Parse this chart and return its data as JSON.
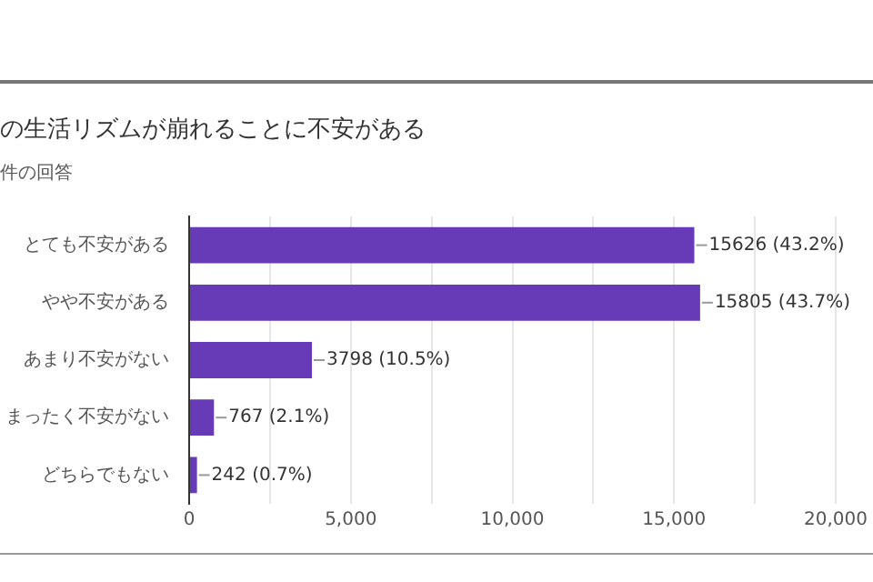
{
  "chart_data": {
    "type": "bar",
    "orientation": "horizontal",
    "title": "の生活リズムが崩れることに不安がある",
    "subtitle": "件の回答",
    "categories": [
      "とても不安がある",
      "やや不安がある",
      "あまり不安がない",
      "まったく不安がない",
      "どちらでもない"
    ],
    "values": [
      15626,
      15805,
      3798,
      767,
      242
    ],
    "value_labels": [
      "15626 (43.2%)",
      "15805 (43.7%)",
      "3798 (10.5%)",
      "767 (2.1%)",
      "242 (0.7%)"
    ],
    "color": "#673ab7",
    "xlim": [
      0,
      20000
    ],
    "xticks": [
      {
        "value": 0,
        "label": "0"
      },
      {
        "value": 2500,
        "label": null
      },
      {
        "value": 5000,
        "label": "5,000"
      },
      {
        "value": 7500,
        "label": null
      },
      {
        "value": 10000,
        "label": "10,000"
      },
      {
        "value": 12500,
        "label": null
      },
      {
        "value": 15000,
        "label": "15,000"
      },
      {
        "value": 17500,
        "label": null
      },
      {
        "value": 20000,
        "label": "20,000"
      }
    ],
    "grid": "x",
    "legend": false
  }
}
